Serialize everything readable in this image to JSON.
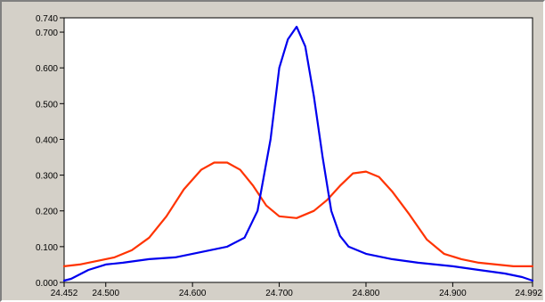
{
  "chart_data": {
    "type": "line",
    "title": "",
    "xlabel": "",
    "ylabel": "",
    "xlim": [
      24.452,
      24.992
    ],
    "ylim": [
      0.0,
      0.74
    ],
    "grid": false,
    "x_ticks": [
      {
        "value": 24.452,
        "label": "24.452"
      },
      {
        "value": 24.5,
        "label": "24.500"
      },
      {
        "value": 24.6,
        "label": "24.600"
      },
      {
        "value": 24.7,
        "label": "24.700"
      },
      {
        "value": 24.8,
        "label": "24.800"
      },
      {
        "value": 24.9,
        "label": "24.900"
      },
      {
        "value": 24.992,
        "label": "24.992"
      }
    ],
    "y_ticks": [
      {
        "value": 0.0,
        "label": "0.000"
      },
      {
        "value": 0.1,
        "label": "0.100"
      },
      {
        "value": 0.2,
        "label": "0.200"
      },
      {
        "value": 0.3,
        "label": "0.300"
      },
      {
        "value": 0.4,
        "label": "0.400"
      },
      {
        "value": 0.5,
        "label": "0.500"
      },
      {
        "value": 0.6,
        "label": "0.600"
      },
      {
        "value": 0.7,
        "label": "0.700"
      },
      {
        "value": 0.74,
        "label": "0.740"
      }
    ],
    "series": [
      {
        "color": "#ff3300",
        "x": [
          24.452,
          24.47,
          24.49,
          24.51,
          24.53,
          24.55,
          24.57,
          24.59,
          24.61,
          24.625,
          24.64,
          24.655,
          24.67,
          24.685,
          24.7,
          24.72,
          24.74,
          24.755,
          24.77,
          24.785,
          24.8,
          24.815,
          24.83,
          24.85,
          24.87,
          24.89,
          24.91,
          24.93,
          24.95,
          24.97,
          24.992
        ],
        "y": [
          0.045,
          0.05,
          0.06,
          0.07,
          0.09,
          0.125,
          0.185,
          0.26,
          0.315,
          0.335,
          0.335,
          0.315,
          0.27,
          0.215,
          0.185,
          0.18,
          0.2,
          0.23,
          0.27,
          0.305,
          0.31,
          0.295,
          0.255,
          0.19,
          0.12,
          0.08,
          0.065,
          0.055,
          0.05,
          0.045,
          0.045
        ]
      },
      {
        "color": "#0000ee",
        "x": [
          24.452,
          24.46,
          24.48,
          24.5,
          24.52,
          24.55,
          24.58,
          24.6,
          24.62,
          24.64,
          24.66,
          24.675,
          24.69,
          24.7,
          24.71,
          24.72,
          24.73,
          24.74,
          24.75,
          24.76,
          24.77,
          24.78,
          24.8,
          24.83,
          24.86,
          24.9,
          24.93,
          24.96,
          24.98,
          24.992
        ],
        "y": [
          0.005,
          0.01,
          0.035,
          0.05,
          0.055,
          0.065,
          0.07,
          0.08,
          0.09,
          0.1,
          0.125,
          0.2,
          0.4,
          0.6,
          0.68,
          0.715,
          0.66,
          0.52,
          0.35,
          0.2,
          0.13,
          0.1,
          0.08,
          0.065,
          0.055,
          0.045,
          0.035,
          0.025,
          0.015,
          0.005
        ]
      }
    ]
  }
}
